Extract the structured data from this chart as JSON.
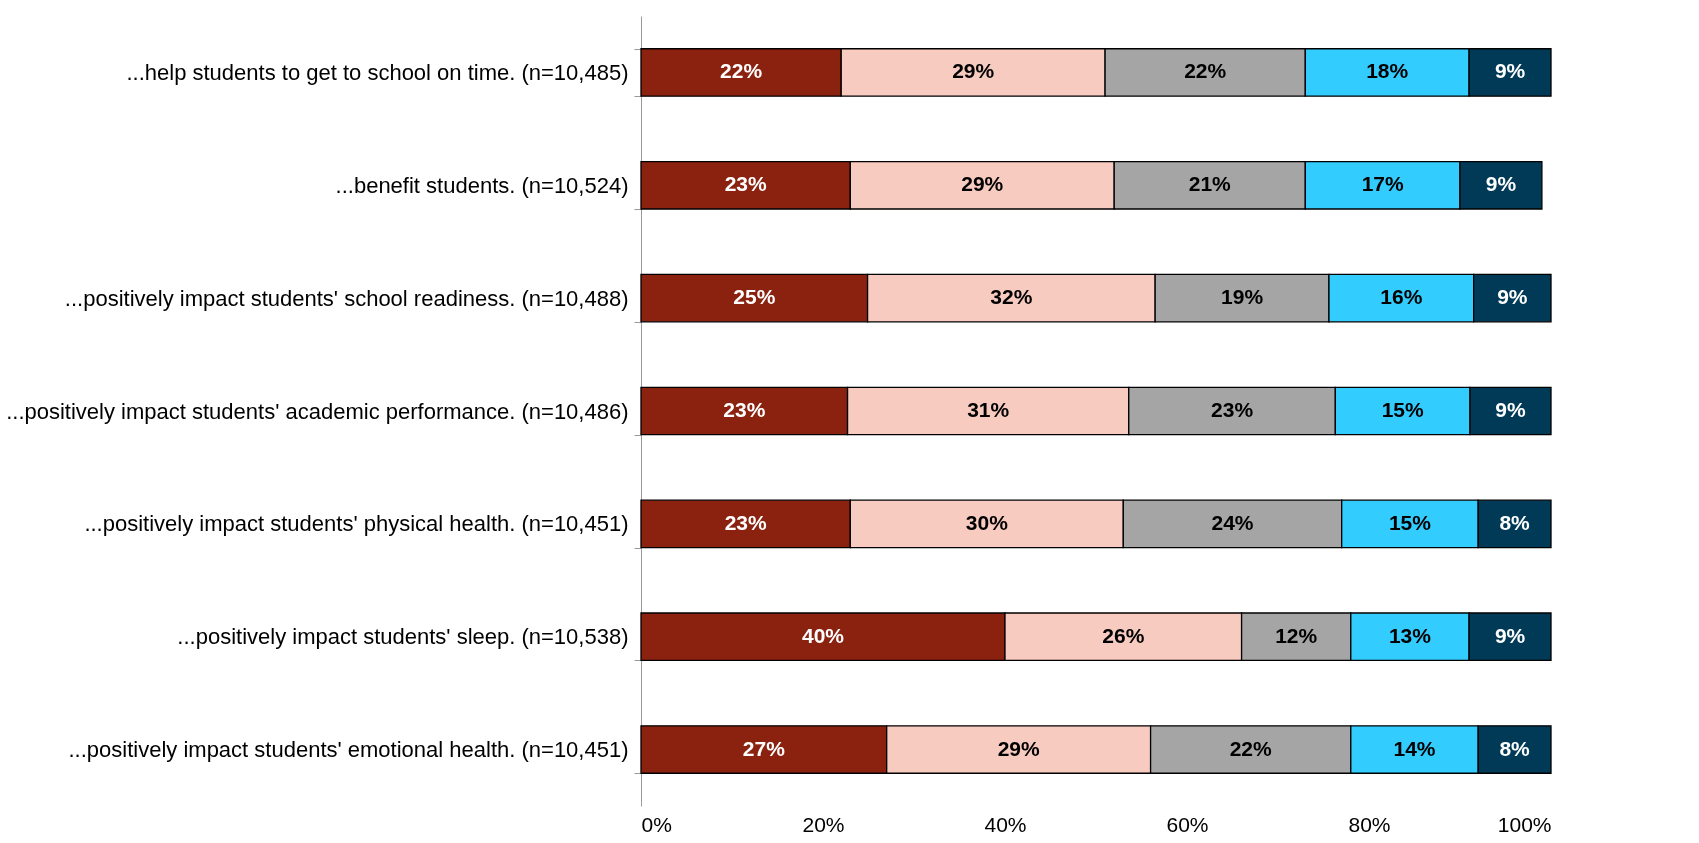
{
  "chart_data": {
    "type": "bar",
    "orientation": "horizontal",
    "stacked": true,
    "categories": [
      "...help students to get to school on time. (n=10,485)",
      "...benefit students. (n=10,524)",
      "...positively impact students' school readiness. (n=10,488)",
      "...positively impact students' academic performance. (n=10,486)",
      "...positively impact students' physical health. (n=10,451)",
      "...positively impact students' sleep. (n=10,538)",
      "...positively impact students' emotional health. (n=10,451)"
    ],
    "series": [
      {
        "color": "#8b2210",
        "values": [
          22,
          23,
          24.9,
          22.7,
          23,
          40,
          27
        ],
        "value_labels": [
          "22%",
          "23%",
          "25%",
          "23%",
          "23%",
          "40%",
          "27%"
        ]
      },
      {
        "color": "#f8cbc0",
        "values": [
          29,
          29,
          31.6,
          30.9,
          30,
          26,
          29
        ],
        "value_labels": [
          "29%",
          "29%",
          "32%",
          "31%",
          "30%",
          "26%",
          "29%"
        ]
      },
      {
        "color": "#a5a5a5",
        "values": [
          22,
          21,
          19.1,
          22.7,
          24,
          12,
          22
        ],
        "value_labels": [
          "22%",
          "21%",
          "19%",
          "23%",
          "24%",
          "12%",
          "22%"
        ]
      },
      {
        "color": "#33ccff",
        "values": [
          18,
          17,
          15.9,
          14.8,
          15,
          13,
          14
        ],
        "value_labels": [
          "18%",
          "17%",
          "16%",
          "15%",
          "15%",
          "13%",
          "14%"
        ]
      },
      {
        "color": "#003a57",
        "values": [
          9,
          9,
          8.5,
          8.9,
          8,
          9,
          8
        ],
        "value_labels": [
          "9%",
          "9%",
          "9%",
          "9%",
          "8%",
          "9%",
          "8%"
        ]
      }
    ],
    "xlim": [
      0,
      100
    ],
    "xticks": [
      {
        "value": 0,
        "label": "0%"
      },
      {
        "value": 20,
        "label": "20%"
      },
      {
        "value": 40,
        "label": "40%"
      },
      {
        "value": 60,
        "label": "60%"
      },
      {
        "value": 80,
        "label": "80%"
      },
      {
        "value": 100,
        "label": "100%"
      }
    ],
    "grid": false
  }
}
